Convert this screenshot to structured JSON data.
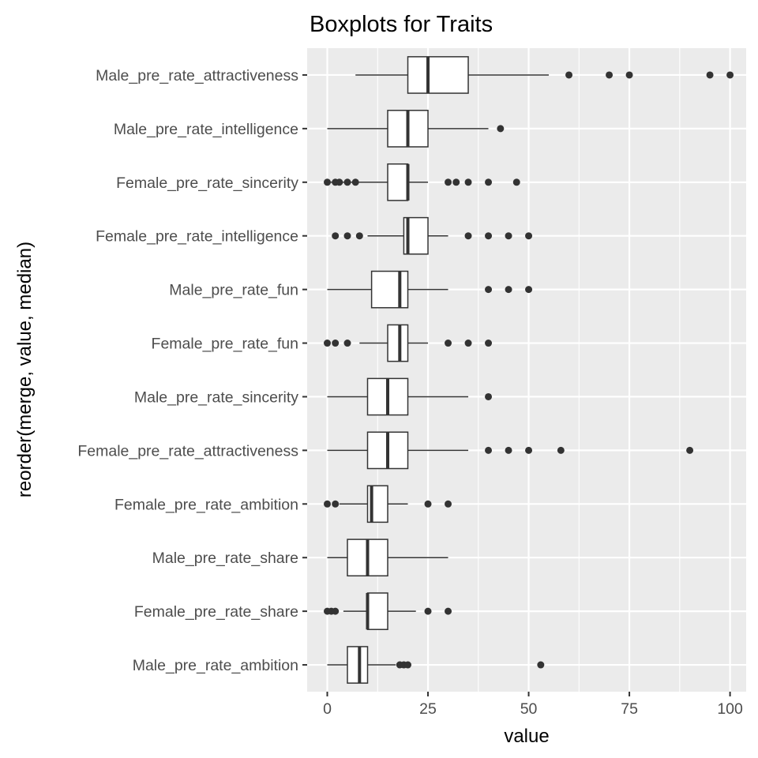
{
  "chart_data": {
    "type": "boxplot",
    "orientation": "horizontal",
    "title": "Boxplots for Traits",
    "xlabel": "value",
    "ylabel": "reorder(merge, value, median)",
    "xlim": [
      -5,
      104
    ],
    "xticks": [
      0,
      25,
      50,
      75,
      100
    ],
    "xtick_labels": [
      "0",
      "25",
      "50",
      "75",
      "100"
    ],
    "grid": true,
    "legend": "none",
    "colors": {
      "panel": "#ebebeb",
      "grid": "#ffffff",
      "box_fill": "#ffffff",
      "box_line": "#333333",
      "outlier": "#333333"
    },
    "series": [
      {
        "name": "Male_pre_rate_attractiveness",
        "whisker_low": 7,
        "q1": 20,
        "median": 25,
        "q3": 35,
        "whisker_high": 55,
        "outliers": [
          60,
          70,
          75,
          95,
          100
        ]
      },
      {
        "name": "Male_pre_rate_intelligence",
        "whisker_low": 0,
        "q1": 15,
        "median": 20,
        "q3": 25,
        "whisker_high": 40,
        "outliers": [
          43
        ]
      },
      {
        "name": "Female_pre_rate_sincerity",
        "whisker_low": 0,
        "q1": 15,
        "median": 20,
        "q3": 20,
        "whisker_high": 25,
        "outliers": [
          0,
          2,
          3,
          5,
          7,
          30,
          32,
          35,
          40,
          47
        ]
      },
      {
        "name": "Female_pre_rate_intelligence",
        "whisker_low": 10,
        "q1": 19,
        "median": 20,
        "q3": 25,
        "whisker_high": 30,
        "outliers": [
          2,
          5,
          8,
          35,
          40,
          45,
          50
        ]
      },
      {
        "name": "Male_pre_rate_fun",
        "whisker_low": 0,
        "q1": 11,
        "median": 18,
        "q3": 20,
        "whisker_high": 30,
        "outliers": [
          40,
          45,
          50
        ]
      },
      {
        "name": "Female_pre_rate_fun",
        "whisker_low": 8,
        "q1": 15,
        "median": 18,
        "q3": 20,
        "whisker_high": 25,
        "outliers": [
          0,
          2,
          5,
          30,
          35,
          40
        ]
      },
      {
        "name": "Male_pre_rate_sincerity",
        "whisker_low": 0,
        "q1": 10,
        "median": 15,
        "q3": 20,
        "whisker_high": 35,
        "outliers": [
          40
        ]
      },
      {
        "name": "Female_pre_rate_attractiveness",
        "whisker_low": 0,
        "q1": 10,
        "median": 15,
        "q3": 20,
        "whisker_high": 35,
        "outliers": [
          40,
          45,
          50,
          58,
          90
        ]
      },
      {
        "name": "Female_pre_rate_ambition",
        "whisker_low": 3,
        "q1": 10,
        "median": 11,
        "q3": 15,
        "whisker_high": 20,
        "outliers": [
          0,
          2,
          25,
          30
        ]
      },
      {
        "name": "Male_pre_rate_share",
        "whisker_low": 0,
        "q1": 5,
        "median": 10,
        "q3": 15,
        "whisker_high": 30,
        "outliers": []
      },
      {
        "name": "Female_pre_rate_share",
        "whisker_low": 4,
        "q1": 10,
        "median": 10,
        "q3": 15,
        "whisker_high": 22,
        "outliers": [
          0,
          1,
          2,
          25,
          30
        ]
      },
      {
        "name": "Male_pre_rate_ambition",
        "whisker_low": 0,
        "q1": 5,
        "median": 8,
        "q3": 10,
        "whisker_high": 17,
        "outliers": [
          18,
          19,
          20,
          53
        ]
      }
    ]
  }
}
